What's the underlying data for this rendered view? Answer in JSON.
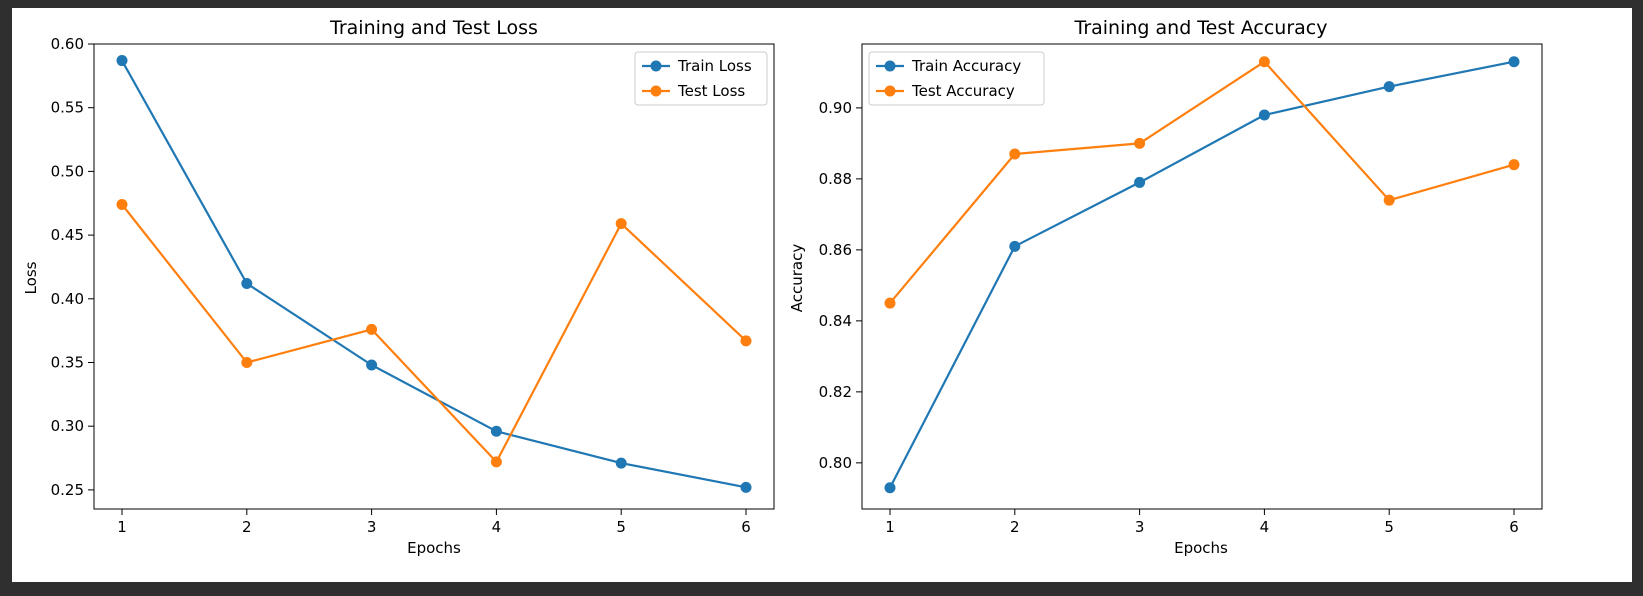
{
  "chart_data": [
    {
      "type": "line",
      "title": "Training and Test Loss",
      "xlabel": "Epochs",
      "ylabel": "Loss",
      "x": [
        1,
        2,
        3,
        4,
        5,
        6
      ],
      "xticks": [
        "1",
        "2",
        "3",
        "4",
        "5",
        "6"
      ],
      "yticks": [
        "0.25",
        "0.30",
        "0.35",
        "0.40",
        "0.45",
        "0.50",
        "0.55",
        "0.60"
      ],
      "ylim": [
        0.235,
        0.6
      ],
      "grid": false,
      "legend_position": "top-right",
      "series": [
        {
          "name": "Train Loss",
          "color": "#1f77b4",
          "marker": "circle",
          "values": [
            0.587,
            0.412,
            0.348,
            0.296,
            0.271,
            0.252
          ]
        },
        {
          "name": "Test Loss",
          "color": "#ff7f0e",
          "marker": "circle",
          "values": [
            0.474,
            0.35,
            0.376,
            0.272,
            0.459,
            0.367
          ]
        }
      ]
    },
    {
      "type": "line",
      "title": "Training and Test Accuracy",
      "xlabel": "Epochs",
      "ylabel": "Accuracy",
      "x": [
        1,
        2,
        3,
        4,
        5,
        6
      ],
      "xticks": [
        "1",
        "2",
        "3",
        "4",
        "5",
        "6"
      ],
      "yticks": [
        "0.80",
        "0.82",
        "0.84",
        "0.86",
        "0.88",
        "0.90"
      ],
      "ylim": [
        0.787,
        0.918
      ],
      "grid": false,
      "legend_position": "top-left",
      "series": [
        {
          "name": "Train Accuracy",
          "color": "#1f77b4",
          "marker": "circle",
          "values": [
            0.793,
            0.861,
            0.879,
            0.898,
            0.906,
            0.913
          ]
        },
        {
          "name": "Test Accuracy",
          "color": "#ff7f0e",
          "marker": "circle",
          "values": [
            0.845,
            0.887,
            0.89,
            0.913,
            0.874,
            0.884
          ]
        }
      ]
    }
  ]
}
